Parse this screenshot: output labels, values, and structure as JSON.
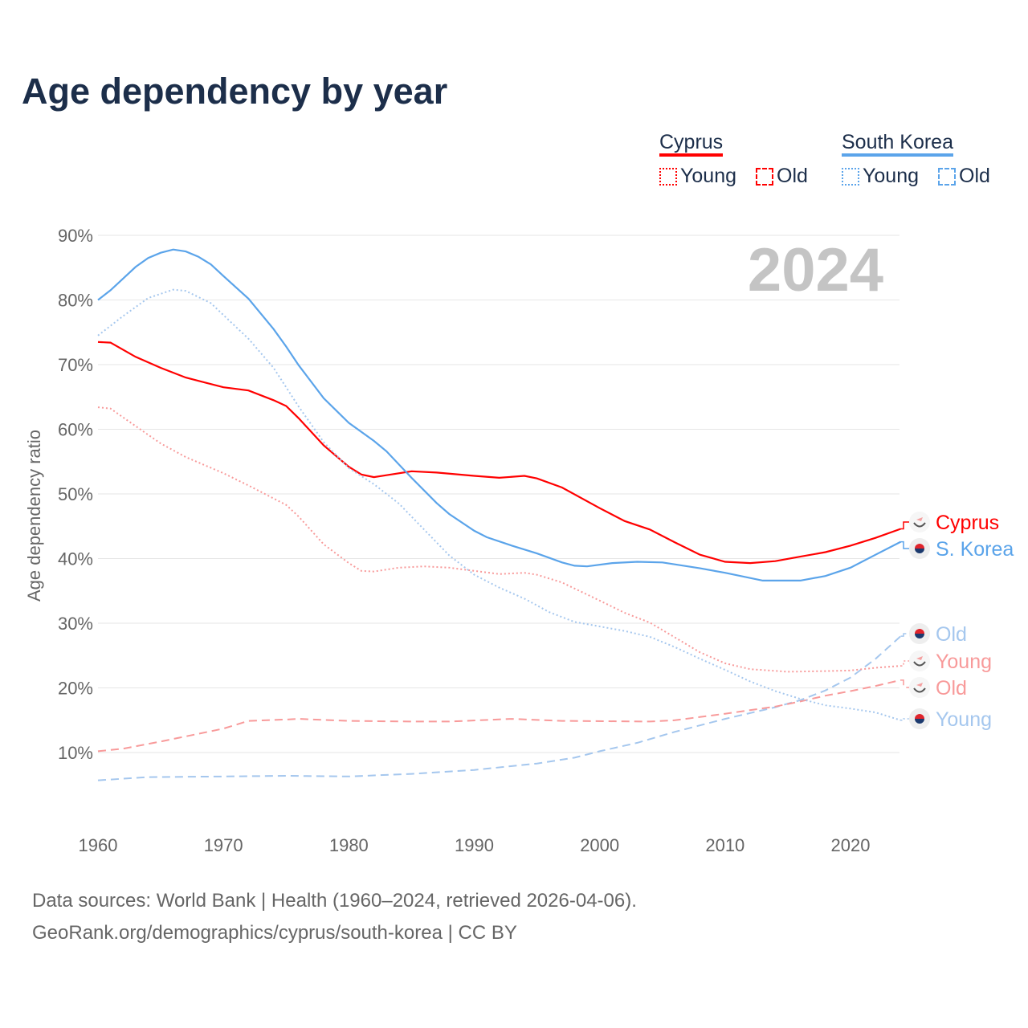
{
  "title": "Age dependency by year",
  "legend": {
    "groups": [
      {
        "name": "Cyprus",
        "color": "#ff0000",
        "light": "#f89a9a",
        "young": "Young",
        "old": "Old"
      },
      {
        "name": "South Korea",
        "color": "#5ba4ea",
        "light": "#a5c7ee",
        "young": "Young",
        "old": "Old"
      }
    ]
  },
  "year_watermark": "2024",
  "sources": {
    "line1": "Data sources: World Bank | Health (1960–2024, retrieved 2026-04-06).",
    "line2": "GeoRank.org/demographics/cyprus/south-korea | CC BY"
  },
  "chart_data": {
    "type": "line",
    "title": "Age dependency by year",
    "xlabel": "",
    "ylabel": "Age dependency ratio",
    "xlim": [
      1960,
      2024
    ],
    "ylim": [
      0,
      90
    ],
    "xticks": [
      1960,
      1970,
      1980,
      1990,
      2000,
      2010,
      2020
    ],
    "yticks": [
      {
        "v": 10,
        "label": "10%"
      },
      {
        "v": 20,
        "label": "20%"
      },
      {
        "v": 30,
        "label": "30%"
      },
      {
        "v": 40,
        "label": "40%"
      },
      {
        "v": 50,
        "label": "50%"
      },
      {
        "v": 60,
        "label": "60%"
      },
      {
        "v": 70,
        "label": "70%"
      },
      {
        "v": 80,
        "label": "80%"
      },
      {
        "v": 90,
        "label": "90%"
      }
    ],
    "grid": true,
    "series": [
      {
        "name": "Cyprus",
        "end_label": "Cyprus",
        "country": "cy",
        "style": "solid",
        "color": "#ff0000",
        "points": [
          [
            1960,
            73.5
          ],
          [
            1961,
            73.4
          ],
          [
            1963,
            71.2
          ],
          [
            1965,
            69.5
          ],
          [
            1967,
            68.0
          ],
          [
            1970,
            66.5
          ],
          [
            1972,
            66.0
          ],
          [
            1974,
            64.5
          ],
          [
            1975,
            63.6
          ],
          [
            1976,
            61.7
          ],
          [
            1978,
            57.5
          ],
          [
            1980,
            54.2
          ],
          [
            1981,
            53.0
          ],
          [
            1982,
            52.6
          ],
          [
            1983,
            52.9
          ],
          [
            1985,
            53.5
          ],
          [
            1987,
            53.3
          ],
          [
            1990,
            52.8
          ],
          [
            1992,
            52.5
          ],
          [
            1994,
            52.8
          ],
          [
            1995,
            52.4
          ],
          [
            1997,
            51.0
          ],
          [
            2000,
            47.8
          ],
          [
            2002,
            45.8
          ],
          [
            2004,
            44.5
          ],
          [
            2006,
            42.5
          ],
          [
            2008,
            40.6
          ],
          [
            2010,
            39.5
          ],
          [
            2012,
            39.3
          ],
          [
            2014,
            39.6
          ],
          [
            2016,
            40.3
          ],
          [
            2018,
            41.0
          ],
          [
            2020,
            42.0
          ],
          [
            2022,
            43.2
          ],
          [
            2024,
            44.6
          ]
        ]
      },
      {
        "name": "South Korea",
        "end_label": "S. Korea",
        "country": "kr",
        "style": "solid",
        "color": "#5ba4ea",
        "points": [
          [
            1960,
            80.0
          ],
          [
            1961,
            81.5
          ],
          [
            1962,
            83.3
          ],
          [
            1963,
            85.1
          ],
          [
            1964,
            86.5
          ],
          [
            1965,
            87.3
          ],
          [
            1966,
            87.8
          ],
          [
            1967,
            87.5
          ],
          [
            1968,
            86.7
          ],
          [
            1969,
            85.5
          ],
          [
            1970,
            83.7
          ],
          [
            1972,
            80.2
          ],
          [
            1974,
            75.5
          ],
          [
            1975,
            72.8
          ],
          [
            1976,
            69.9
          ],
          [
            1978,
            64.8
          ],
          [
            1980,
            61.0
          ],
          [
            1982,
            58.2
          ],
          [
            1983,
            56.6
          ],
          [
            1985,
            52.5
          ],
          [
            1987,
            48.6
          ],
          [
            1988,
            46.9
          ],
          [
            1990,
            44.3
          ],
          [
            1991,
            43.3
          ],
          [
            1993,
            42.0
          ],
          [
            1995,
            40.8
          ],
          [
            1997,
            39.4
          ],
          [
            1998,
            38.9
          ],
          [
            1999,
            38.8
          ],
          [
            2001,
            39.3
          ],
          [
            2003,
            39.5
          ],
          [
            2005,
            39.4
          ],
          [
            2008,
            38.5
          ],
          [
            2010,
            37.8
          ],
          [
            2011,
            37.4
          ],
          [
            2013,
            36.6
          ],
          [
            2016,
            36.6
          ],
          [
            2018,
            37.3
          ],
          [
            2020,
            38.6
          ],
          [
            2022,
            40.6
          ],
          [
            2024,
            42.6
          ]
        ]
      },
      {
        "name": "South Korea Old",
        "end_label": "Old",
        "country": "kr",
        "style": "dashed",
        "color": "#a5c7ee",
        "points": [
          [
            1960,
            5.7
          ],
          [
            1964,
            6.2
          ],
          [
            1970,
            6.3
          ],
          [
            1975,
            6.4
          ],
          [
            1980,
            6.3
          ],
          [
            1985,
            6.7
          ],
          [
            1990,
            7.3
          ],
          [
            1995,
            8.3
          ],
          [
            1998,
            9.2
          ],
          [
            2000,
            10.2
          ],
          [
            2003,
            11.5
          ],
          [
            2006,
            13.2
          ],
          [
            2010,
            15.2
          ],
          [
            2014,
            17.0
          ],
          [
            2016,
            18.1
          ],
          [
            2018,
            19.6
          ],
          [
            2020,
            21.6
          ],
          [
            2022,
            24.5
          ],
          [
            2024,
            28.0
          ]
        ]
      },
      {
        "name": "Cyprus Young",
        "end_label": "Young",
        "country": "cy",
        "style": "dotted",
        "color": "#f89a9a",
        "points": [
          [
            1960,
            63.4
          ],
          [
            1961,
            63.2
          ],
          [
            1963,
            60.5
          ],
          [
            1965,
            57.8
          ],
          [
            1967,
            55.7
          ],
          [
            1970,
            53.2
          ],
          [
            1972,
            51.3
          ],
          [
            1975,
            48.3
          ],
          [
            1976,
            46.5
          ],
          [
            1978,
            42.2
          ],
          [
            1980,
            39.3
          ],
          [
            1981,
            38.1
          ],
          [
            1982,
            38.0
          ],
          [
            1984,
            38.6
          ],
          [
            1986,
            38.8
          ],
          [
            1988,
            38.6
          ],
          [
            1990,
            38.1
          ],
          [
            1992,
            37.6
          ],
          [
            1994,
            37.8
          ],
          [
            1995,
            37.5
          ],
          [
            1997,
            36.3
          ],
          [
            2000,
            33.5
          ],
          [
            2002,
            31.6
          ],
          [
            2004,
            30.1
          ],
          [
            2006,
            27.8
          ],
          [
            2008,
            25.5
          ],
          [
            2010,
            23.8
          ],
          [
            2012,
            22.9
          ],
          [
            2015,
            22.5
          ],
          [
            2018,
            22.6
          ],
          [
            2020,
            22.7
          ],
          [
            2022,
            23.1
          ],
          [
            2024,
            23.4
          ]
        ]
      },
      {
        "name": "Cyprus Old",
        "end_label": "Old",
        "country": "cy",
        "style": "dashed",
        "color": "#f89a9a",
        "points": [
          [
            1960,
            10.2
          ],
          [
            1962,
            10.6
          ],
          [
            1965,
            11.7
          ],
          [
            1968,
            12.9
          ],
          [
            1970,
            13.7
          ],
          [
            1972,
            14.9
          ],
          [
            1975,
            15.1
          ],
          [
            1976,
            15.2
          ],
          [
            1980,
            14.9
          ],
          [
            1985,
            14.8
          ],
          [
            1988,
            14.8
          ],
          [
            1993,
            15.2
          ],
          [
            1997,
            14.9
          ],
          [
            2004,
            14.8
          ],
          [
            2006,
            15.0
          ],
          [
            2010,
            16.0
          ],
          [
            2014,
            17.1
          ],
          [
            2016,
            17.9
          ],
          [
            2018,
            18.8
          ],
          [
            2020,
            19.5
          ],
          [
            2022,
            20.3
          ],
          [
            2024,
            21.2
          ]
        ]
      },
      {
        "name": "South Korea Young",
        "end_label": "Young",
        "country": "kr",
        "style": "dotted",
        "color": "#a5c7ee",
        "points": [
          [
            1960,
            74.5
          ],
          [
            1962,
            77.5
          ],
          [
            1964,
            80.3
          ],
          [
            1966,
            81.6
          ],
          [
            1967,
            81.4
          ],
          [
            1969,
            79.5
          ],
          [
            1972,
            74.0
          ],
          [
            1974,
            69.5
          ],
          [
            1976,
            63.5
          ],
          [
            1978,
            58.0
          ],
          [
            1980,
            54.0
          ],
          [
            1982,
            51.5
          ],
          [
            1984,
            48.5
          ],
          [
            1986,
            44.5
          ],
          [
            1988,
            40.5
          ],
          [
            1990,
            37.5
          ],
          [
            1992,
            35.5
          ],
          [
            1994,
            33.8
          ],
          [
            1996,
            31.7
          ],
          [
            1998,
            30.2
          ],
          [
            2000,
            29.5
          ],
          [
            2002,
            28.8
          ],
          [
            2004,
            27.9
          ],
          [
            2006,
            26.3
          ],
          [
            2008,
            24.5
          ],
          [
            2010,
            22.8
          ],
          [
            2012,
            21.0
          ],
          [
            2014,
            19.5
          ],
          [
            2016,
            18.3
          ],
          [
            2018,
            17.3
          ],
          [
            2020,
            16.8
          ],
          [
            2022,
            16.2
          ],
          [
            2024,
            15.0
          ]
        ]
      }
    ]
  }
}
